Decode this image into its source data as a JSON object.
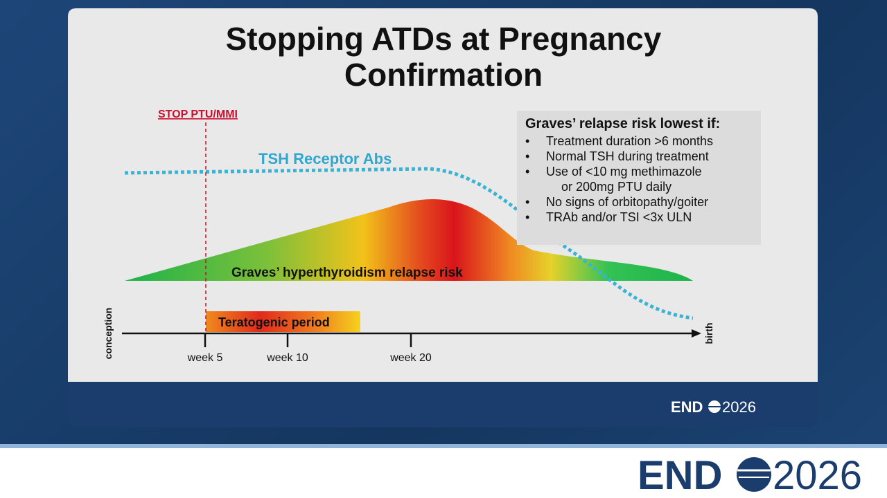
{
  "slide": {
    "title": "Stopping ATDs at Pregnancy Confirmation",
    "stop_label": "STOP PTU/MMI",
    "tsh_label": "TSH Receptor Abs",
    "relapse_label": "Graves’ hyperthyroidism relapse risk",
    "teratogenic_label": "Teratogenic period",
    "axis": {
      "start": "conception",
      "end": "birth",
      "ticks": [
        "week 5",
        "week 10",
        "week 20"
      ]
    },
    "box": {
      "title": "Graves’ relapse risk lowest if:",
      "bullets": [
        [
          "Treatment duration >6 months"
        ],
        [
          "Normal TSH during treatment"
        ],
        [
          "Use of <10 mg methimazole",
          "or 200mg PTU daily"
        ],
        [
          "No signs of orbitopathy/goiter"
        ],
        [
          "TRAb and/or TSI <3x ULN"
        ]
      ]
    }
  },
  "slide_logo": {
    "left": "END",
    "right": "2026"
  },
  "footer_logo": {
    "left": "END",
    "right": "2026"
  }
}
